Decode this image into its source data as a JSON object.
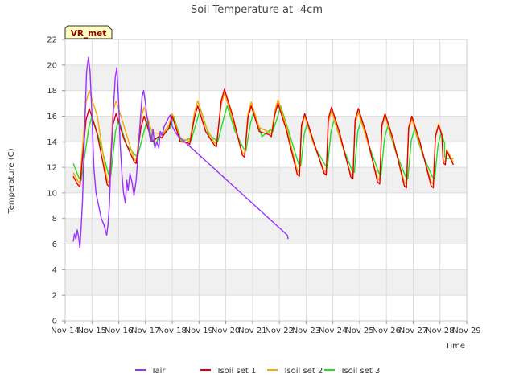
{
  "chart_data": {
    "type": "line",
    "title": "Soil Temperature at -4cm",
    "xlabel": "Time",
    "ylabel": "Temperature (C)",
    "badge": "VR_met",
    "ylim": [
      0,
      22
    ],
    "xlim": [
      14,
      29
    ],
    "yticks": [
      0,
      2,
      4,
      6,
      8,
      10,
      12,
      14,
      16,
      18,
      20,
      22
    ],
    "xticks": [
      {
        "value": 14,
        "label": "Nov 14"
      },
      {
        "value": 15,
        "label": "Nov 15"
      },
      {
        "value": 16,
        "label": "Nov 16"
      },
      {
        "value": 17,
        "label": "Nov 17"
      },
      {
        "value": 18,
        "label": "Nov 18"
      },
      {
        "value": 19,
        "label": "Nov 19"
      },
      {
        "value": 20,
        "label": "Nov 20"
      },
      {
        "value": 21,
        "label": "Nov 21"
      },
      {
        "value": 22,
        "label": "Nov 22"
      },
      {
        "value": 23,
        "label": "Nov 23"
      },
      {
        "value": 24,
        "label": "Nov 24"
      },
      {
        "value": 25,
        "label": "Nov 25"
      },
      {
        "value": 26,
        "label": "Nov 26"
      },
      {
        "value": 27,
        "label": "Nov 27"
      },
      {
        "value": 28,
        "label": "Nov 28"
      },
      {
        "value": 29,
        "label": "Nov 29"
      }
    ],
    "grid": true,
    "legend_position": "bottom",
    "series": [
      {
        "name": "Tair",
        "color": "#9b30ff",
        "points": [
          [
            14.3,
            6.2
          ],
          [
            14.35,
            6.8
          ],
          [
            14.4,
            6.4
          ],
          [
            14.45,
            7.1
          ],
          [
            14.5,
            6.6
          ],
          [
            14.55,
            5.7
          ],
          [
            14.6,
            7.5
          ],
          [
            14.65,
            9.5
          ],
          [
            14.7,
            13.0
          ],
          [
            14.75,
            16.5
          ],
          [
            14.8,
            19.5
          ],
          [
            14.87,
            20.6
          ],
          [
            14.93,
            19.5
          ],
          [
            15.0,
            16.0
          ],
          [
            15.07,
            12.0
          ],
          [
            15.15,
            10.0
          ],
          [
            15.25,
            9.0
          ],
          [
            15.35,
            8.0
          ],
          [
            15.45,
            7.5
          ],
          [
            15.55,
            6.7
          ],
          [
            15.6,
            7.5
          ],
          [
            15.65,
            9.0
          ],
          [
            15.7,
            12.0
          ],
          [
            15.8,
            16.5
          ],
          [
            15.87,
            19.0
          ],
          [
            15.93,
            19.8
          ],
          [
            16.0,
            17.0
          ],
          [
            16.05,
            14.0
          ],
          [
            16.12,
            11.5
          ],
          [
            16.18,
            10.0
          ],
          [
            16.25,
            9.2
          ],
          [
            16.3,
            11.0
          ],
          [
            16.35,
            10.2
          ],
          [
            16.42,
            11.5
          ],
          [
            16.5,
            10.8
          ],
          [
            16.57,
            9.8
          ],
          [
            16.65,
            11.0
          ],
          [
            16.72,
            13.0
          ],
          [
            16.8,
            15.5
          ],
          [
            16.87,
            17.5
          ],
          [
            16.93,
            18.0
          ],
          [
            17.0,
            17.0
          ],
          [
            17.05,
            16.0
          ],
          [
            17.1,
            15.5
          ],
          [
            17.15,
            14.5
          ],
          [
            17.22,
            14.0
          ],
          [
            17.28,
            15.0
          ],
          [
            17.35,
            13.5
          ],
          [
            17.42,
            14.0
          ],
          [
            17.5,
            13.5
          ],
          [
            17.55,
            14.8
          ],
          [
            17.62,
            14.5
          ],
          [
            17.7,
            15.2
          ],
          [
            17.8,
            15.6
          ],
          [
            17.87,
            15.9
          ],
          [
            17.93,
            16.1
          ],
          [
            18.0,
            15.2
          ],
          [
            18.1,
            14.8
          ],
          [
            18.2,
            14.5
          ],
          [
            22.3,
            6.7
          ],
          [
            22.33,
            6.4
          ]
        ]
      },
      {
        "name": "Tsoil set 1",
        "color": "#e00000",
        "peaks": [
          [
            14.9,
            16.6
          ],
          [
            15.9,
            16.2
          ],
          [
            16.95,
            16.0
          ],
          [
            18.0,
            16.0
          ],
          [
            18.95,
            16.8
          ],
          [
            19.95,
            18.1
          ],
          [
            20.95,
            16.8
          ],
          [
            21.95,
            17.0
          ],
          [
            22.95,
            16.2
          ],
          [
            23.95,
            16.7
          ],
          [
            24.95,
            16.6
          ],
          [
            25.95,
            16.2
          ],
          [
            26.95,
            16.0
          ],
          [
            27.95,
            15.3
          ]
        ],
        "troughs": [
          [
            14.55,
            10.5
          ],
          [
            15.65,
            10.5
          ],
          [
            16.65,
            12.3
          ],
          [
            17.6,
            14.3
          ],
          [
            18.65,
            13.8
          ],
          [
            19.65,
            13.6
          ],
          [
            20.7,
            12.8
          ],
          [
            21.7,
            14.4
          ],
          [
            22.75,
            11.3
          ],
          [
            23.75,
            11.4
          ],
          [
            24.75,
            11.1
          ],
          [
            25.75,
            10.7
          ],
          [
            26.75,
            10.4
          ],
          [
            27.75,
            10.4
          ],
          [
            28.2,
            12.2
          ]
        ],
        "start": [
          14.3,
          11.3
        ],
        "end": [
          28.5,
          12.2
        ]
      },
      {
        "name": "Tsoil set 2",
        "color": "#ffa500",
        "peaks": [
          [
            14.9,
            18.0
          ],
          [
            15.9,
            17.2
          ],
          [
            16.95,
            16.7
          ],
          [
            18.0,
            16.2
          ],
          [
            18.95,
            17.2
          ],
          [
            19.95,
            17.8
          ],
          [
            20.95,
            17.1
          ],
          [
            21.95,
            17.3
          ],
          [
            22.95,
            16.0
          ],
          [
            23.95,
            16.4
          ],
          [
            24.95,
            16.3
          ],
          [
            25.95,
            16.0
          ],
          [
            26.95,
            15.8
          ],
          [
            27.95,
            15.4
          ]
        ],
        "troughs": [
          [
            14.55,
            10.8
          ],
          [
            15.65,
            10.8
          ],
          [
            16.65,
            12.5
          ],
          [
            17.6,
            14.5
          ],
          [
            18.65,
            14.0
          ],
          [
            19.65,
            13.8
          ],
          [
            20.7,
            13.0
          ],
          [
            21.7,
            14.6
          ],
          [
            22.75,
            11.6
          ],
          [
            23.75,
            11.6
          ],
          [
            24.75,
            11.3
          ],
          [
            25.75,
            11.0
          ],
          [
            26.75,
            10.7
          ],
          [
            27.75,
            10.7
          ],
          [
            28.2,
            12.4
          ]
        ],
        "start": [
          14.3,
          11.6
        ],
        "end": [
          28.5,
          12.4
        ]
      },
      {
        "name": "Tsoil set 3",
        "color": "#22dd22",
        "peaks": [
          [
            15.0,
            16.0
          ],
          [
            16.0,
            15.7
          ],
          [
            17.05,
            15.6
          ],
          [
            18.05,
            16.0
          ],
          [
            19.05,
            16.6
          ],
          [
            20.05,
            16.8
          ],
          [
            21.05,
            16.4
          ],
          [
            22.05,
            16.8
          ],
          [
            23.05,
            15.5
          ],
          [
            24.05,
            15.7
          ],
          [
            25.05,
            15.7
          ],
          [
            26.05,
            15.2
          ],
          [
            27.05,
            15.0
          ],
          [
            28.05,
            14.7
          ]
        ],
        "troughs": [
          [
            14.6,
            11.0
          ],
          [
            15.7,
            11.3
          ],
          [
            16.7,
            12.8
          ],
          [
            17.65,
            14.6
          ],
          [
            18.7,
            14.1
          ],
          [
            19.7,
            14.0
          ],
          [
            20.75,
            13.3
          ],
          [
            21.75,
            14.8
          ],
          [
            22.8,
            12.1
          ],
          [
            23.8,
            12.0
          ],
          [
            24.8,
            11.6
          ],
          [
            25.8,
            11.4
          ],
          [
            26.8,
            11.1
          ],
          [
            27.8,
            11.1
          ],
          [
            28.25,
            12.7
          ]
        ],
        "start": [
          14.3,
          12.3
        ],
        "end": [
          28.5,
          12.7
        ]
      }
    ]
  }
}
